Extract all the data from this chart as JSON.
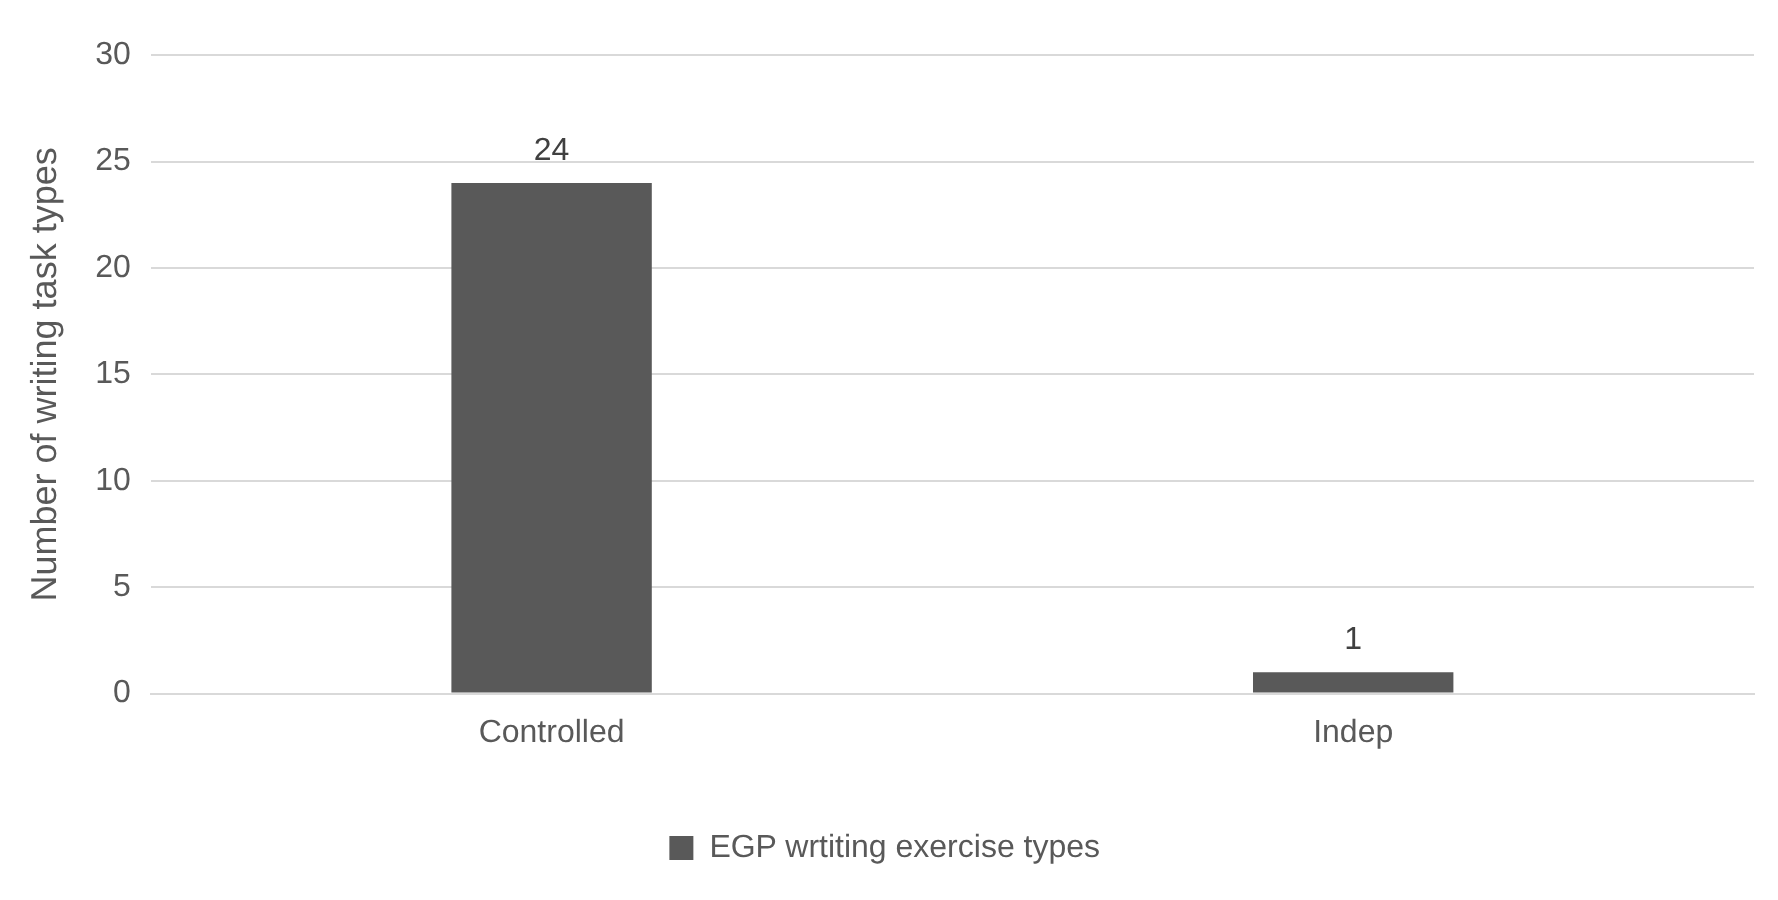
{
  "chart_data": {
    "type": "bar",
    "ylabel": "Number of writing task types",
    "categories": [
      "Controlled",
      "Indep"
    ],
    "series": [
      {
        "name": "EGP wrtiting exercise types",
        "color": "#595959",
        "values": [
          24,
          1
        ]
      }
    ],
    "ylim": [
      0,
      30
    ],
    "yticks": [
      0,
      5,
      10,
      15,
      20,
      25,
      30
    ],
    "grid": "y",
    "legend": "bottom",
    "data_labels": true
  }
}
